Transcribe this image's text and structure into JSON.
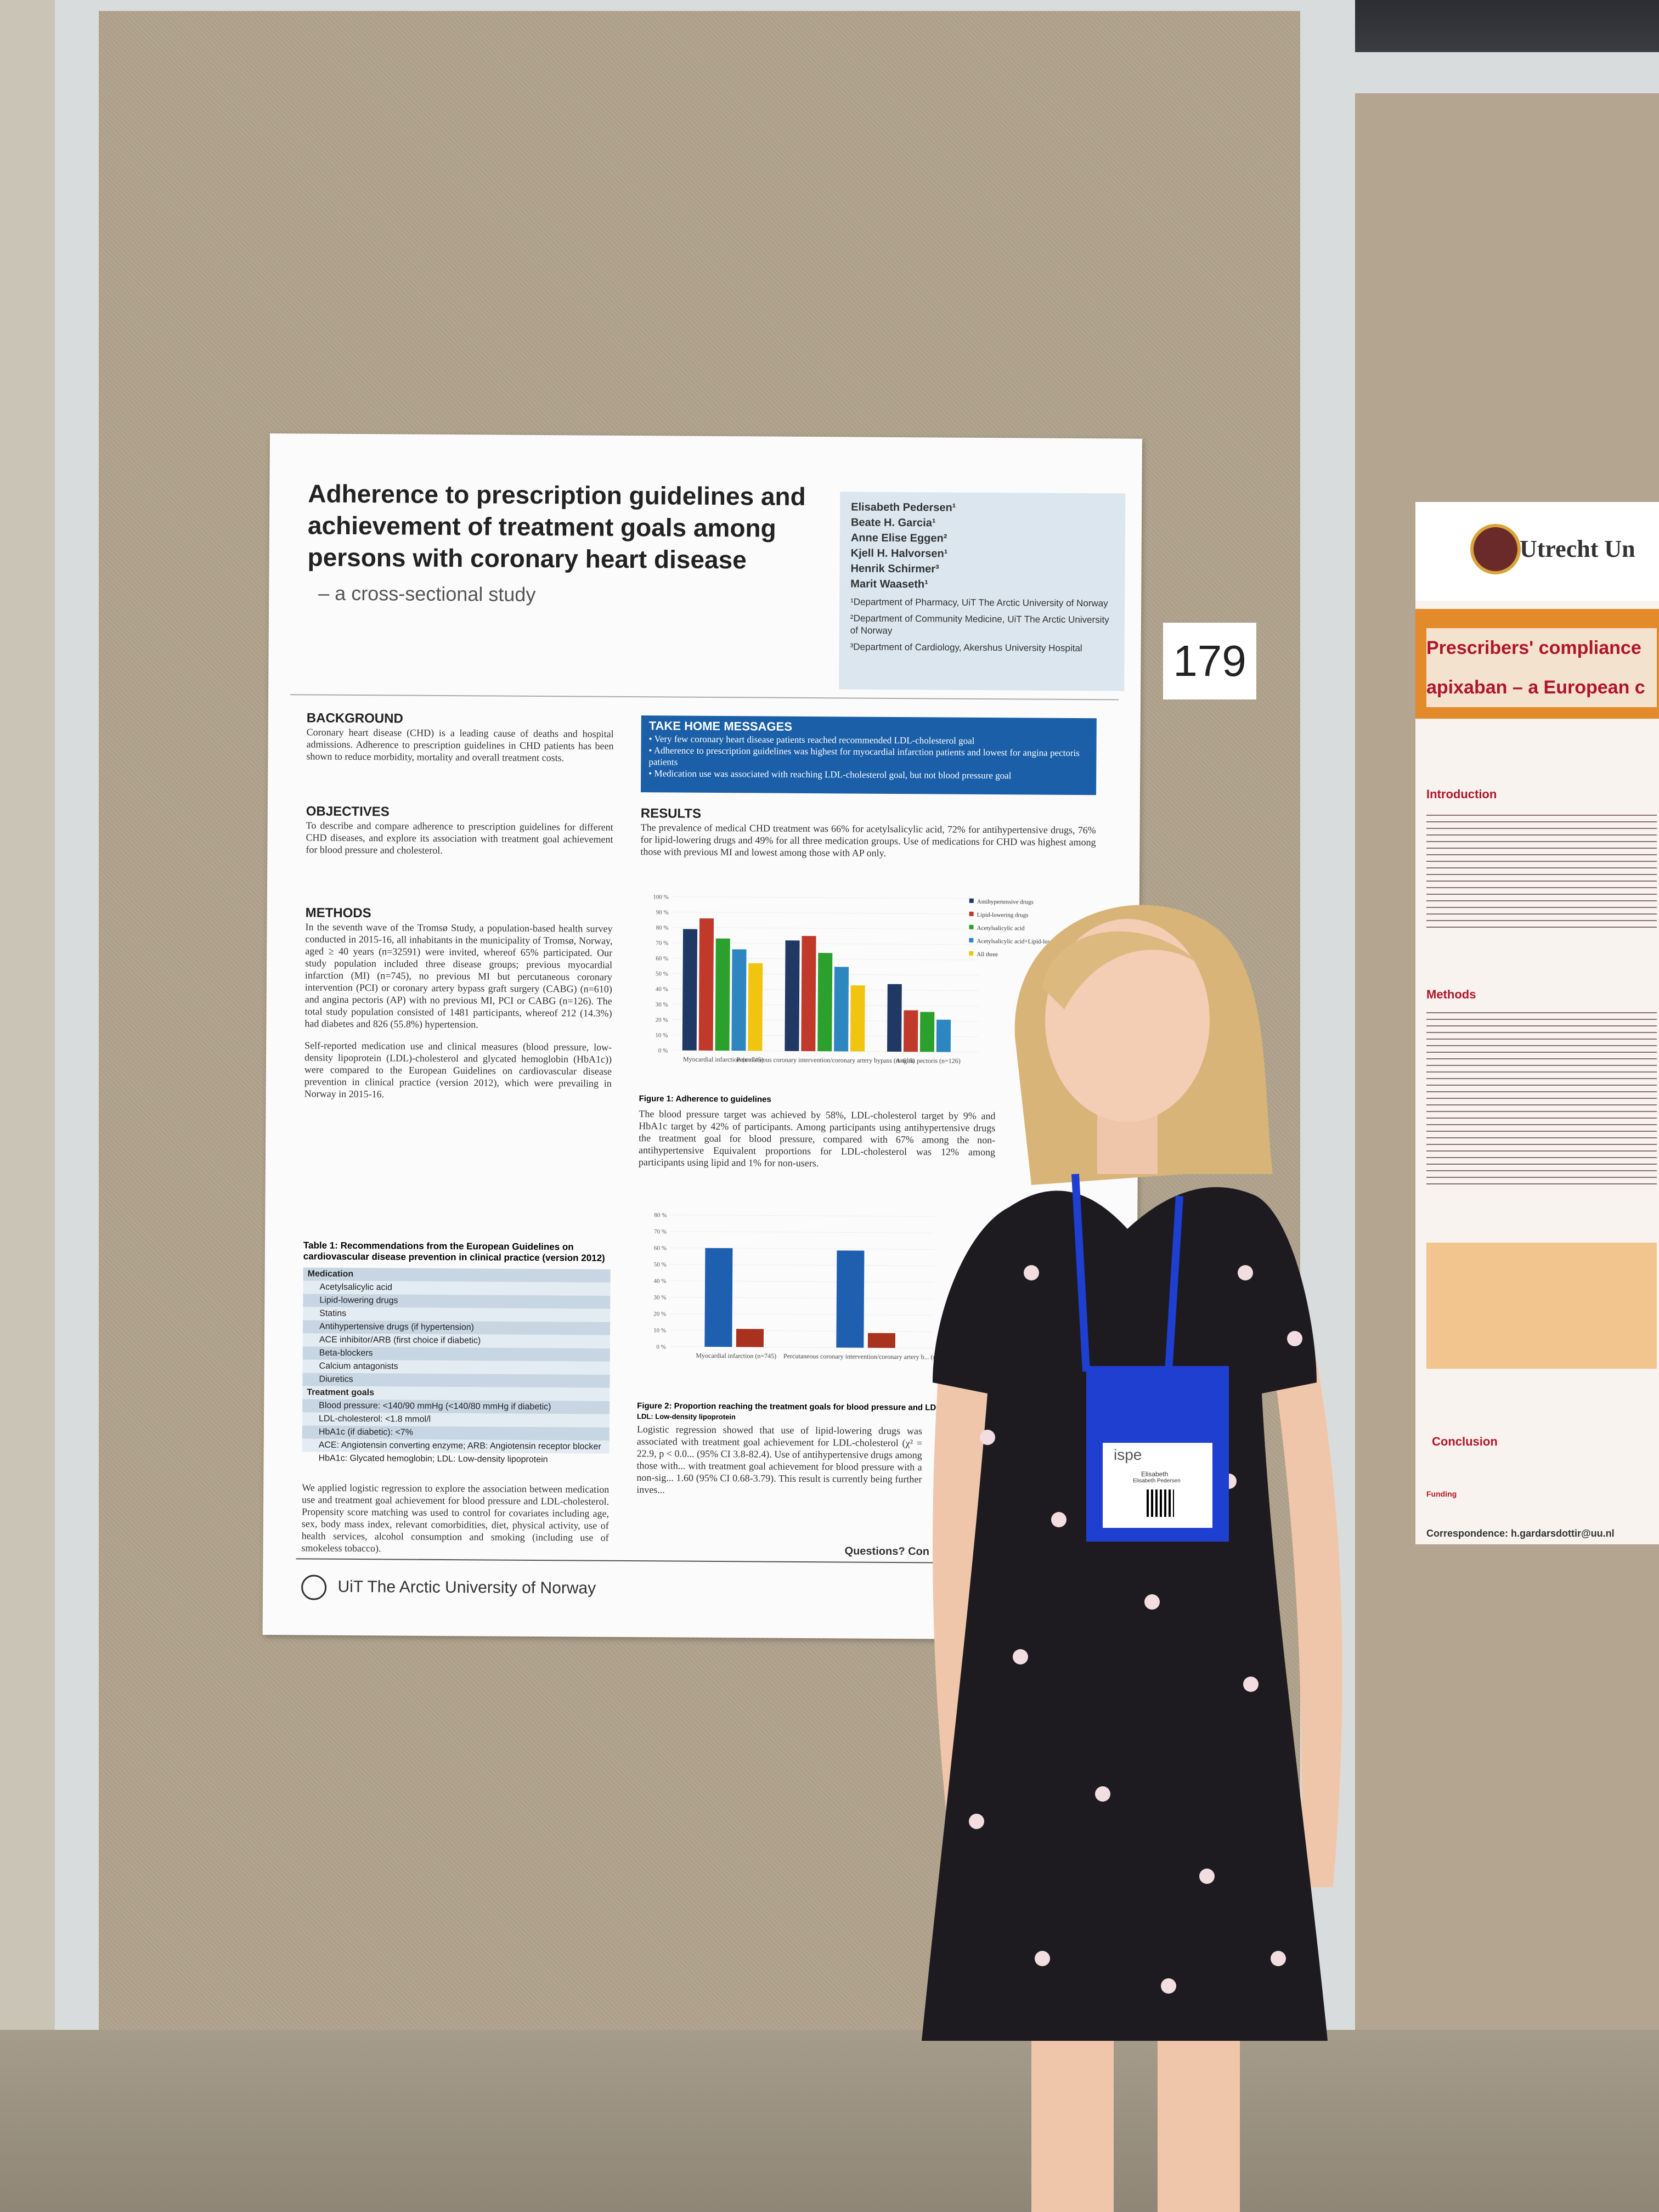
{
  "poster": {
    "title": "Adherence to prescription guidelines and achievement of treatment goals among persons with coronary heart disease",
    "subtitle": "– a cross-sectional study",
    "authors": [
      "Elisabeth Pedersen¹",
      "Beate H. Garcia¹",
      "Anne Elise Eggen²",
      "Kjell H. Halvorsen¹",
      "Henrik Schirmer³",
      "Marit Waaseth¹"
    ],
    "affiliations": [
      "¹Department of Pharmacy, UiT The Arctic University of Norway",
      "²Department of Community Medicine, UiT The Arctic University of Norway",
      "³Department of Cardiology, Akershus University Hospital"
    ],
    "background_head": "BACKGROUND",
    "background_text": "Coronary heart disease (CHD) is a leading cause of deaths and hospital admissions. Adherence to prescription guidelines in CHD patients has been shown to reduce morbidity, mortality and overall treatment costs.",
    "takehome_head": "TAKE HOME MESSAGES",
    "takehome_items": [
      "Very few coronary heart disease patients reached recommended LDL-cholesterol goal",
      "Adherence to prescription guidelines was highest for myocardial infarction patients and lowest for angina pectoris patients",
      "Medication use was associated with reaching LDL-cholesterol goal, but not blood pressure goal"
    ],
    "objectives_head": "OBJECTIVES",
    "objectives_text": "To describe and compare adherence to prescription guidelines for different CHD diseases, and explore its association with treatment goal achievement for blood pressure and cholesterol.",
    "results_head": "RESULTS",
    "results_text": "The prevalence of medical CHD treatment was 66% for acetylsalicylic acid, 72% for antihypertensive drugs, 76% for lipid-lowering drugs and 49% for all three medication groups. Use of medications for CHD was highest among those with previous MI and lowest among those with AP only.",
    "methods_head": "METHODS",
    "methods_text": "In the seventh wave of the Tromsø Study, a population-based health survey conducted in 2015-16, all inhabitants in the municipality of Tromsø, Norway, aged ≥ 40 years (n=32591) were invited, whereof 65% participated. Our study population included three disease groups; previous myocardial infarction (MI) (n=745), no previous MI but percutaneous coronary intervention (PCI) or coronary artery bypass graft surgery (CABG) (n=610) and angina pectoris (AP) with no previous MI, PCI or CABG (n=126). The total study population consisted of 1481 participants, whereof 212 (14.3%) had diabetes and 826 (55.8%) hypertension.",
    "methods_text2": "Self-reported medication use and clinical measures (blood pressure, low-density lipoprotein (LDL)-cholesterol and glycated hemoglobin (HbA1c)) were compared to the European Guidelines on cardiovascular disease prevention in clinical practice (version 2012), which were prevailing in Norway in 2015-16.",
    "fig1_caption": "Figure 1: Adherence to guidelines",
    "results_text2": "The blood pressure target was achieved by 58%, LDL-cholesterol target by 9% and HbA1c target by 42% of participants. Among participants using antihypertensive drugs the treatment goal for blood pressure, compared with 67% among the non-antihypertensive Equivalent proportions for LDL-cholesterol was 12% among participants using lipid and 1% for non-users.",
    "table1_title": "Table 1: Recommendations from the European Guidelines on cardiovascular disease prevention in clinical practice (version 2012)",
    "table1_rows": [
      "Medication",
      "Acetylsalicylic acid",
      "Lipid-lowering drugs",
      "Statins",
      "Antihypertensive drugs (if hypertension)",
      "ACE inhibitor/ARB (first choice if diabetic)",
      "Beta-blockers",
      "Calcium antagonists",
      "Diuretics",
      "Treatment goals",
      "Blood pressure: <140/90 mmHg (<140/80 mmHg if diabetic)",
      "LDL-cholesterol: <1.8 mmol/l",
      "HbA1c (if diabetic): <7%",
      "ACE: Angiotensin converting enzyme; ARB: Angiotensin receptor blocker HbA1c: Glycated hemoglobin; LDL: Low-density lipoprotein"
    ],
    "fig2_caption": "Figure 2: Proportion reaching the treatment goals for blood pressure and LDL",
    "fig2_note": "LDL: Low-density lipoprotein",
    "results_text3": "Logistic regression showed that use of lipid-lowering drugs was associated with treatment goal achievement for LDL-cholesterol (χ² = 22.9, p < 0.0... (95% CI 3.8-82.4). Use of antihypertensive drugs among those with... with treatment goal achievement for blood pressure with a non-sig... 1.60 (95% CI 0.68-3.79). This result is currently being further inves...",
    "methods_text3": "We applied logistic regression to explore the association between medication use and treatment goal achievement for blood pressure and LDL-cholesterol. Propensity score matching was used to control for covariates including age, sex, body mass index, relevant comorbidities, diet, physical activity, use of health services, alcohol consumption and smoking (including use of smokeless tobacco).",
    "footer_logo": "UiT The Arctic University of Norway",
    "footer_questions": "Questions? Con"
  },
  "poster_number": "179",
  "right_poster": {
    "logo": "Utrecht Un",
    "title_line1": "Prescribers' compliance",
    "title_line2": "apixaban – a European c",
    "sections": [
      "Introduction",
      "Methods",
      "Conclusion",
      "Funding"
    ],
    "correspondence": "Correspondence: h.gardarsdottir@uu.nl"
  },
  "badge": {
    "logo": "ispe",
    "name": "Elisabeth",
    "fullname": "Elisabeth Pedersen"
  },
  "chart_data": [
    {
      "type": "bar",
      "title": "Figure 1: Adherence to guidelines",
      "categories": [
        "Myocardial infarction (n=745)",
        "Percutaneous coronary intervention/coronary artery bypass (n=610)",
        "Angina pectoris (n=126)"
      ],
      "series": [
        {
          "name": "Antihypertensive drugs",
          "color": "#1f3864",
          "values": [
            79,
            72,
            44
          ]
        },
        {
          "name": "Lipid-lowering drugs",
          "color": "#c0392b",
          "values": [
            86,
            75,
            27
          ]
        },
        {
          "name": "Acetylsalicylic acid",
          "color": "#2ca02c",
          "values": [
            73,
            64,
            26
          ]
        },
        {
          "name": "Acetylsalicylic acid+Lipid-lowering drugs",
          "color": "#2e86c1",
          "values": [
            66,
            55,
            21
          ]
        },
        {
          "name": "All three",
          "color": "#f1c40f",
          "values": [
            57,
            43,
            null
          ]
        }
      ],
      "yticks": [
        "0 %",
        "10 %",
        "20 %",
        "30 %",
        "40 %",
        "50 %",
        "60 %",
        "70 %",
        "80 %",
        "90 %",
        "100 %"
      ],
      "ylim": [
        0,
        100
      ]
    },
    {
      "type": "bar",
      "title": "Figure 2: Proportion reaching the treatment goals for blood pressure and LDL",
      "categories": [
        "Myocardial infarction (n=745)",
        "Percutaneous coronary intervention/coronary artery b... (n=610)"
      ],
      "series": [
        {
          "name": "series-blue",
          "color": "#1f5fb0",
          "values": [
            60,
            59
          ]
        },
        {
          "name": "series-red",
          "color": "#a8321e",
          "values": [
            11,
            9
          ]
        }
      ],
      "yticks": [
        "0 %",
        "10 %",
        "20 %",
        "30 %",
        "40 %",
        "50 %",
        "60 %",
        "70 %",
        "80 %"
      ],
      "ylim": [
        0,
        80
      ]
    }
  ]
}
